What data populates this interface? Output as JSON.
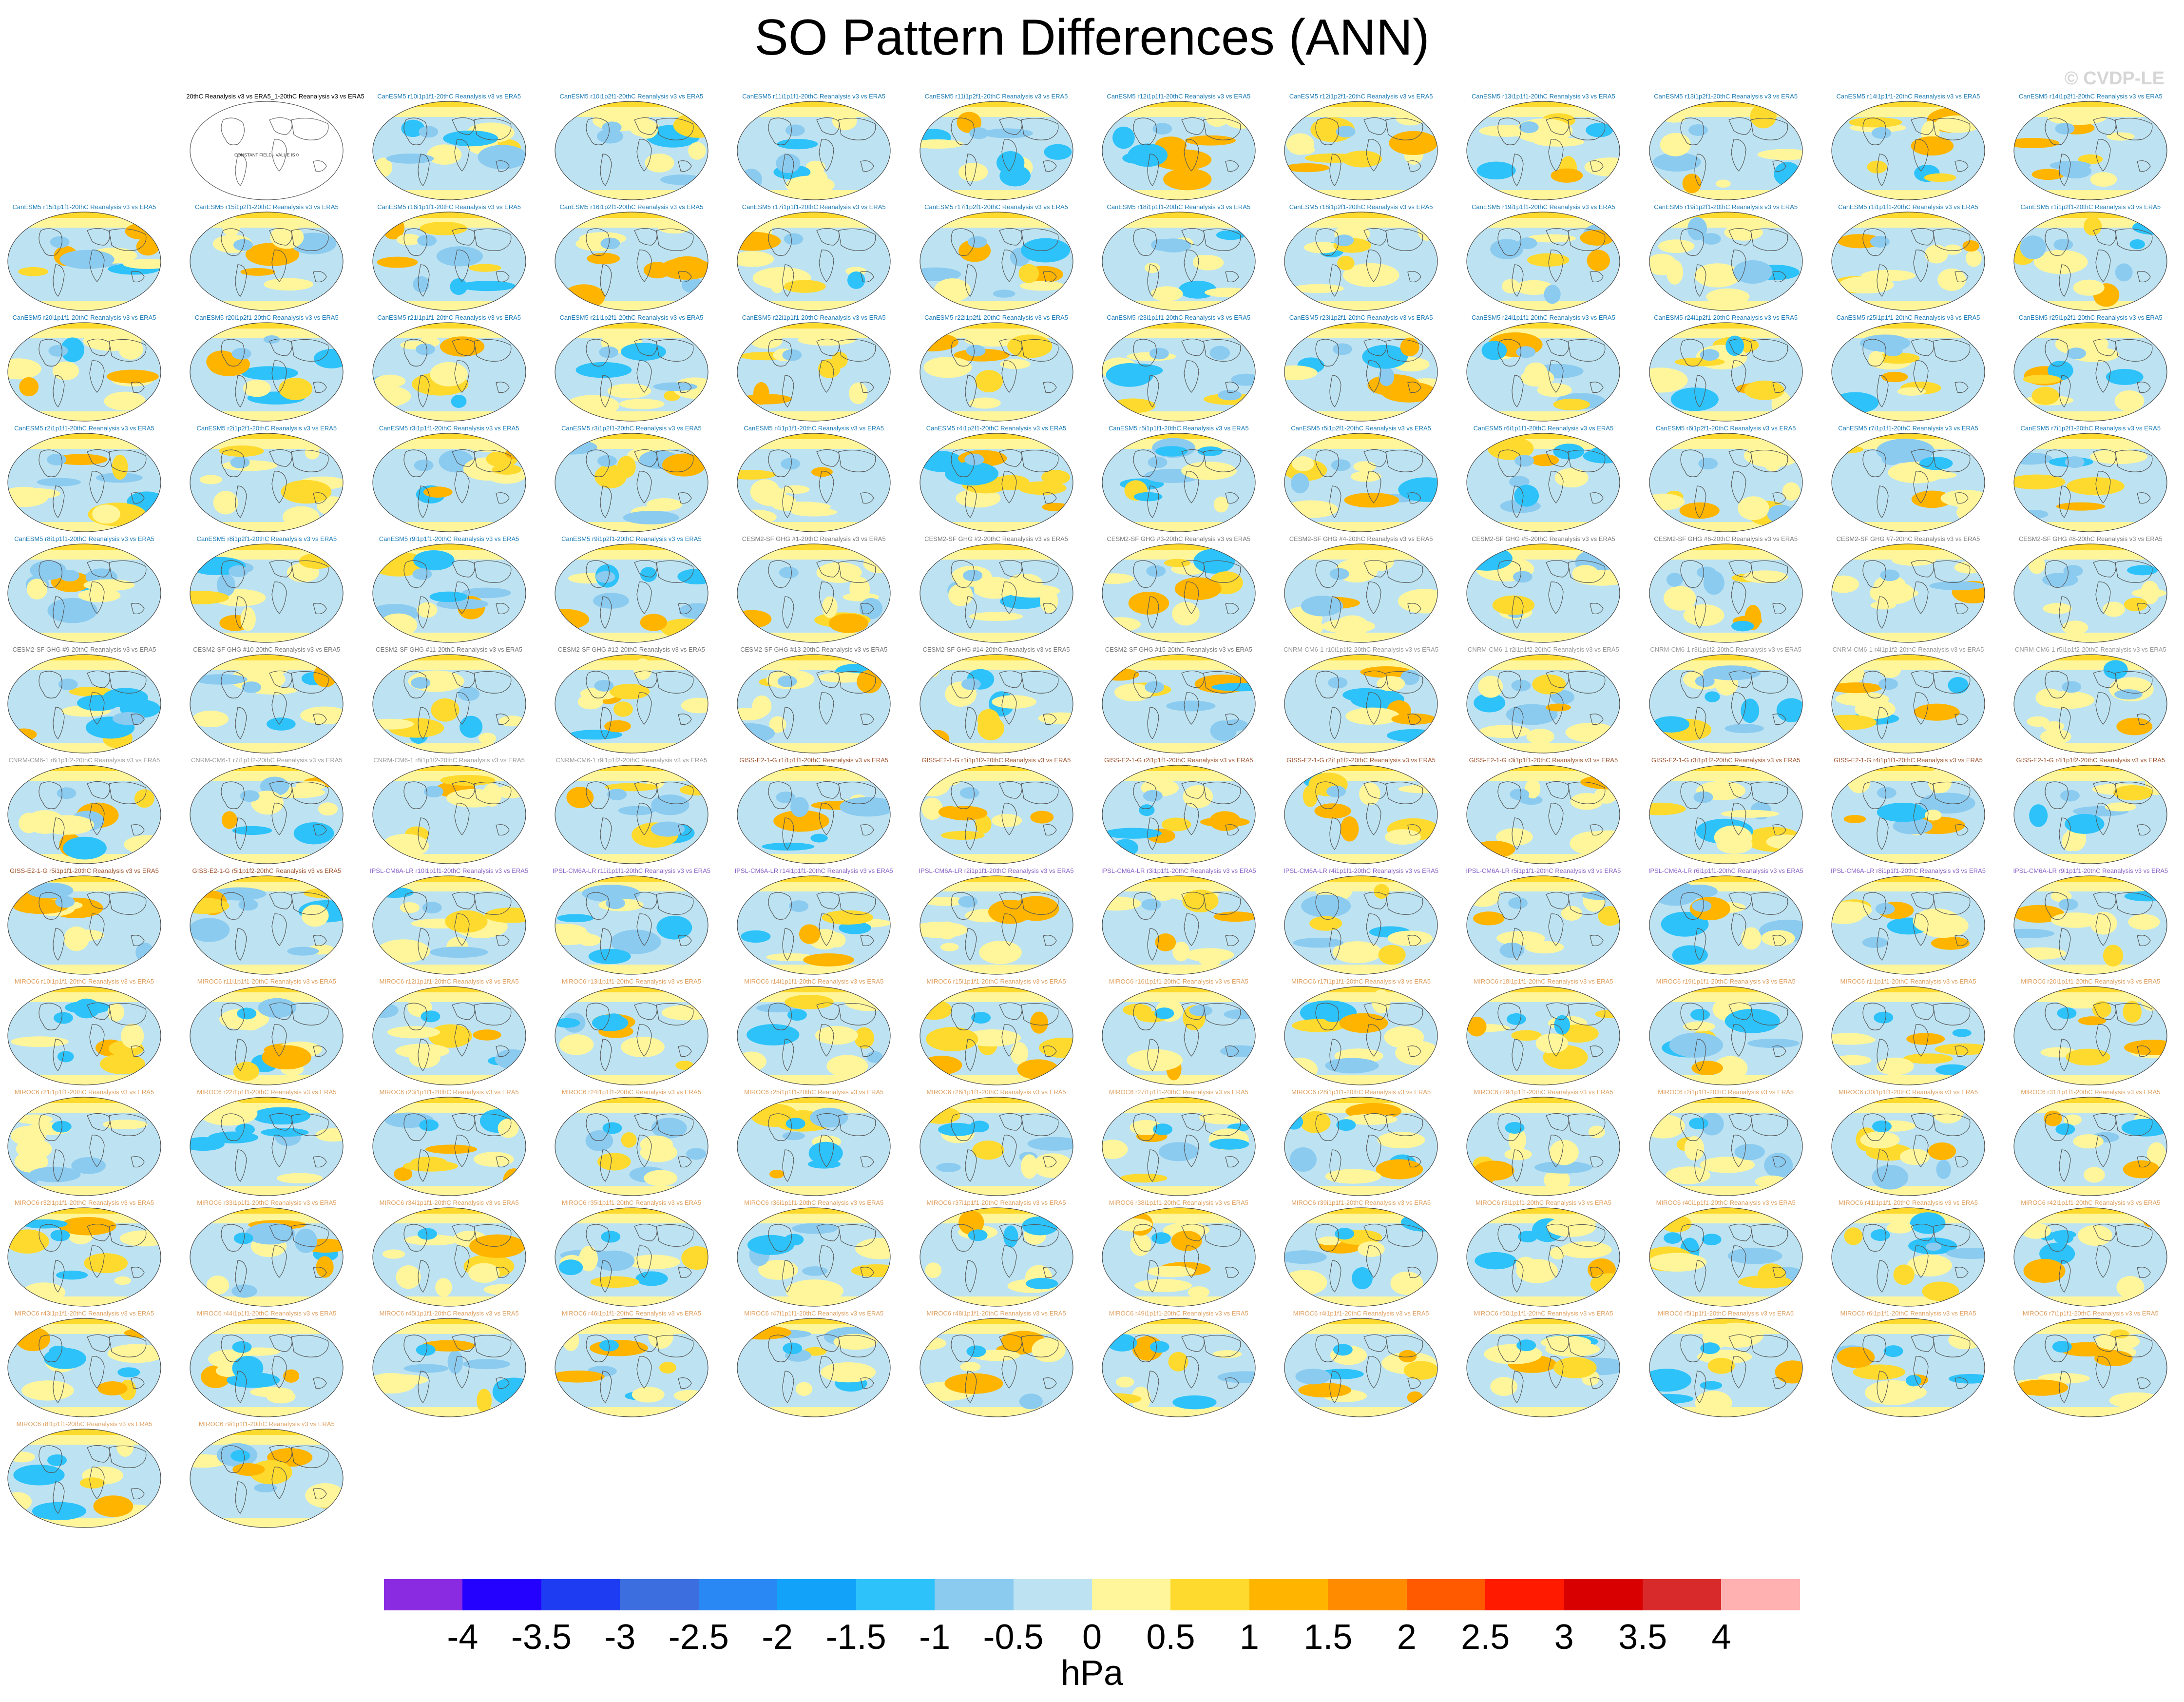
{
  "title": "SO Pattern Differences (ANN)",
  "copyright": "© CVDP-LE",
  "colorbar": {
    "units": "hPa",
    "tick_labels": [
      "-4",
      "-3.5",
      "-3",
      "-2.5",
      "-2",
      "-1.5",
      "-1",
      "-0.5",
      "0",
      "0.5",
      "1",
      "1.5",
      "2",
      "2.5",
      "3",
      "3.5",
      "4"
    ],
    "colors": [
      "#8a2be2",
      "#2400ff",
      "#1e3df2",
      "#3c6ee0",
      "#2a88f5",
      "#12a2fa",
      "#2ec2fa",
      "#8ccbf0",
      "#bde3f2",
      "#fff69c",
      "#ffda2e",
      "#ffb400",
      "#ff8c00",
      "#ff5a00",
      "#ff1a00",
      "#d80000",
      "#d82a2a",
      "#ffb0b0"
    ]
  },
  "chart_data": {
    "type": "heatmap",
    "projection": "global map panels (Robinson-like)",
    "value_range": [
      -4,
      4
    ],
    "units": "hPa",
    "panels": [
      {
        "title": "20thC Reanalysis v3 vs ERA5_1-20thC Reanalysis v3 vs ERA5",
        "group": "ref",
        "label": "CONSTANT FIELD - VALUE IS 0"
      },
      {
        "title": "CanESM5 r10i1p1f1-20thC Reanalysis v3 vs ERA5",
        "group": "canesm"
      },
      {
        "title": "CanESM5 r10i1p2f1-20thC Reanalysis v3 vs ERA5",
        "group": "canesm"
      },
      {
        "title": "CanESM5 r11i1p1f1-20thC Reanalysis v3 vs ERA5",
        "group": "canesm"
      },
      {
        "title": "CanESM5 r11i1p2f1-20thC Reanalysis v3 vs ERA5",
        "group": "canesm"
      },
      {
        "title": "CanESM5 r12i1p1f1-20thC Reanalysis v3 vs ERA5",
        "group": "canesm"
      },
      {
        "title": "CanESM5 r12i1p2f1-20thC Reanalysis v3 vs ERA5",
        "group": "canesm"
      },
      {
        "title": "CanESM5 r13i1p1f1-20thC Reanalysis v3 vs ERA5",
        "group": "canesm"
      },
      {
        "title": "CanESM5 r13i1p2f1-20thC Reanalysis v3 vs ERA5",
        "group": "canesm"
      },
      {
        "title": "CanESM5 r14i1p1f1-20thC Reanalysis v3 vs ERA5",
        "group": "canesm"
      },
      {
        "title": "CanESM5 r14i1p2f1-20thC Reanalysis v3 vs ERA5",
        "group": "canesm"
      },
      {
        "title": "CanESM5 r15i1p1f1-20thC Reanalysis v3 vs ERA5",
        "group": "canesm"
      },
      {
        "title": "CanESM5 r15i1p2f1-20thC Reanalysis v3 vs ERA5",
        "group": "canesm"
      },
      {
        "title": "CanESM5 r16i1p1f1-20thC Reanalysis v3 vs ERA5",
        "group": "canesm"
      },
      {
        "title": "CanESM5 r16i1p2f1-20thC Reanalysis v3 vs ERA5",
        "group": "canesm"
      },
      {
        "title": "CanESM5 r17i1p1f1-20thC Reanalysis v3 vs ERA5",
        "group": "canesm"
      },
      {
        "title": "CanESM5 r17i1p2f1-20thC Reanalysis v3 vs ERA5",
        "group": "canesm"
      },
      {
        "title": "CanESM5 r18i1p1f1-20thC Reanalysis v3 vs ERA5",
        "group": "canesm"
      },
      {
        "title": "CanESM5 r18i1p2f1-20thC Reanalysis v3 vs ERA5",
        "group": "canesm"
      },
      {
        "title": "CanESM5 r19i1p1f1-20thC Reanalysis v3 vs ERA5",
        "group": "canesm"
      },
      {
        "title": "CanESM5 r19i1p2f1-20thC Reanalysis v3 vs ERA5",
        "group": "canesm"
      },
      {
        "title": "CanESM5 r1i1p1f1-20thC Reanalysis v3 vs ERA5",
        "group": "canesm"
      },
      {
        "title": "CanESM5 r1i1p2f1-20thC Reanalysis v3 vs ERA5",
        "group": "canesm"
      },
      {
        "title": "CanESM5 r20i1p1f1-20thC Reanalysis v3 vs ERA5",
        "group": "canesm"
      },
      {
        "title": "CanESM5 r20i1p2f1-20thC Reanalysis v3 vs ERA5",
        "group": "canesm"
      },
      {
        "title": "CanESM5 r21i1p1f1-20thC Reanalysis v3 vs ERA5",
        "group": "canesm"
      },
      {
        "title": "CanESM5 r21i1p2f1-20thC Reanalysis v3 vs ERA5",
        "group": "canesm"
      },
      {
        "title": "CanESM5 r22i1p1f1-20thC Reanalysis v3 vs ERA5",
        "group": "canesm"
      },
      {
        "title": "CanESM5 r22i1p2f1-20thC Reanalysis v3 vs ERA5",
        "group": "canesm"
      },
      {
        "title": "CanESM5 r23i1p1f1-20thC Reanalysis v3 vs ERA5",
        "group": "canesm"
      },
      {
        "title": "CanESM5 r23i1p2f1-20thC Reanalysis v3 vs ERA5",
        "group": "canesm"
      },
      {
        "title": "CanESM5 r24i1p1f1-20thC Reanalysis v3 vs ERA5",
        "group": "canesm"
      },
      {
        "title": "CanESM5 r24i1p2f1-20thC Reanalysis v3 vs ERA5",
        "group": "canesm"
      },
      {
        "title": "CanESM5 r25i1p1f1-20thC Reanalysis v3 vs ERA5",
        "group": "canesm"
      },
      {
        "title": "CanESM5 r25i1p2f1-20thC Reanalysis v3 vs ERA5",
        "group": "canesm"
      },
      {
        "title": "CanESM5 r2i1p1f1-20thC Reanalysis v3 vs ERA5",
        "group": "canesm"
      },
      {
        "title": "CanESM5 r2i1p2f1-20thC Reanalysis v3 vs ERA5",
        "group": "canesm"
      },
      {
        "title": "CanESM5 r3i1p1f1-20thC Reanalysis v3 vs ERA5",
        "group": "canesm"
      },
      {
        "title": "CanESM5 r3i1p2f1-20thC Reanalysis v3 vs ERA5",
        "group": "canesm"
      },
      {
        "title": "CanESM5 r4i1p1f1-20thC Reanalysis v3 vs ERA5",
        "group": "canesm"
      },
      {
        "title": "CanESM5 r4i1p2f1-20thC Reanalysis v3 vs ERA5",
        "group": "canesm"
      },
      {
        "title": "CanESM5 r5i1p1f1-20thC Reanalysis v3 vs ERA5",
        "group": "canesm"
      },
      {
        "title": "CanESM5 r5i1p2f1-20thC Reanalysis v3 vs ERA5",
        "group": "canesm"
      },
      {
        "title": "CanESM5 r6i1p1f1-20thC Reanalysis v3 vs ERA5",
        "group": "canesm"
      },
      {
        "title": "CanESM5 r6i1p2f1-20thC Reanalysis v3 vs ERA5",
        "group": "canesm"
      },
      {
        "title": "CanESM5 r7i1p1f1-20thC Reanalysis v3 vs ERA5",
        "group": "canesm"
      },
      {
        "title": "CanESM5 r7i1p2f1-20thC Reanalysis v3 vs ERA5",
        "group": "canesm"
      },
      {
        "title": "CanESM5 r8i1p1f1-20thC Reanalysis v3 vs ERA5",
        "group": "canesm"
      },
      {
        "title": "CanESM5 r8i1p2f1-20thC Reanalysis v3 vs ERA5",
        "group": "canesm"
      },
      {
        "title": "CanESM5 r9i1p1f1-20thC Reanalysis v3 vs ERA5",
        "group": "canesm"
      },
      {
        "title": "CanESM5 r9i1p2f1-20thC Reanalysis v3 vs ERA5",
        "group": "canesm"
      },
      {
        "title": "CESM2-SF GHG #1-20thC Reanalysis v3 vs ERA5",
        "group": "cesm"
      },
      {
        "title": "CESM2-SF GHG #2-20thC Reanalysis v3 vs ERA5",
        "group": "cesm"
      },
      {
        "title": "CESM2-SF GHG #3-20thC Reanalysis v3 vs ERA5",
        "group": "cesm"
      },
      {
        "title": "CESM2-SF GHG #4-20thC Reanalysis v3 vs ERA5",
        "group": "cesm"
      },
      {
        "title": "CESM2-SF GHG #5-20thC Reanalysis v3 vs ERA5",
        "group": "cesm"
      },
      {
        "title": "CESM2-SF GHG #6-20thC Reanalysis v3 vs ERA5",
        "group": "cesm"
      },
      {
        "title": "CESM2-SF GHG #7-20thC Reanalysis v3 vs ERA5",
        "group": "cesm"
      },
      {
        "title": "CESM2-SF GHG #8-20thC Reanalysis v3 vs ERA5",
        "group": "cesm"
      },
      {
        "title": "CESM2-SF GHG #9-20thC Reanalysis v3 vs ERA5",
        "group": "cesm"
      },
      {
        "title": "CESM2-SF GHG #10-20thC Reanalysis v3 vs ERA5",
        "group": "cesm"
      },
      {
        "title": "CESM2-SF GHG #11-20thC Reanalysis v3 vs ERA5",
        "group": "cesm"
      },
      {
        "title": "CESM2-SF GHG #12-20thC Reanalysis v3 vs ERA5",
        "group": "cesm"
      },
      {
        "title": "CESM2-SF GHG #13-20thC Reanalysis v3 vs ERA5",
        "group": "cesm"
      },
      {
        "title": "CESM2-SF GHG #14-20thC Reanalysis v3 vs ERA5",
        "group": "cesm"
      },
      {
        "title": "CESM2-SF GHG #15-20thC Reanalysis v3 vs ERA5",
        "group": "cesm"
      },
      {
        "title": "CNRM-CM6-1 r10i1p1f2-20thC Reanalysis v3 vs ERA5",
        "group": "cnrm"
      },
      {
        "title": "CNRM-CM6-1 r2i1p1f2-20thC Reanalysis v3 vs ERA5",
        "group": "cnrm"
      },
      {
        "title": "CNRM-CM6-1 r3i1p1f2-20thC Reanalysis v3 vs ERA5",
        "group": "cnrm"
      },
      {
        "title": "CNRM-CM6-1 r4i1p1f2-20thC Reanalysis v3 vs ERA5",
        "group": "cnrm"
      },
      {
        "title": "CNRM-CM6-1 r5i1p1f2-20thC Reanalysis v3 vs ERA5",
        "group": "cnrm"
      },
      {
        "title": "CNRM-CM6-1 r6i1p1f2-20thC Reanalysis v3 vs ERA5",
        "group": "cnrm"
      },
      {
        "title": "CNRM-CM6-1 r7i1p1f2-20thC Reanalysis v3 vs ERA5",
        "group": "cnrm"
      },
      {
        "title": "CNRM-CM6-1 r8i1p1f2-20thC Reanalysis v3 vs ERA5",
        "group": "cnrm"
      },
      {
        "title": "CNRM-CM6-1 r9i1p1f2-20thC Reanalysis v3 vs ERA5",
        "group": "cnrm"
      },
      {
        "title": "GISS-E2-1-G r1i1p1f1-20thC Reanalysis v3 vs ERA5",
        "group": "giss"
      },
      {
        "title": "GISS-E2-1-G r1i1p1f2-20thC Reanalysis v3 vs ERA5",
        "group": "giss"
      },
      {
        "title": "GISS-E2-1-G r2i1p1f1-20thC Reanalysis v3 vs ERA5",
        "group": "giss"
      },
      {
        "title": "GISS-E2-1-G r2i1p1f2-20thC Reanalysis v3 vs ERA5",
        "group": "giss"
      },
      {
        "title": "GISS-E2-1-G r3i1p1f1-20thC Reanalysis v3 vs ERA5",
        "group": "giss"
      },
      {
        "title": "GISS-E2-1-G r3i1p1f2-20thC Reanalysis v3 vs ERA5",
        "group": "giss"
      },
      {
        "title": "GISS-E2-1-G r4i1p1f1-20thC Reanalysis v3 vs ERA5",
        "group": "giss"
      },
      {
        "title": "GISS-E2-1-G r4i1p1f2-20thC Reanalysis v3 vs ERA5",
        "group": "giss"
      },
      {
        "title": "GISS-E2-1-G r5i1p1f1-20thC Reanalysis v3 vs ERA5",
        "group": "giss"
      },
      {
        "title": "GISS-E2-1-G r5i1p1f2-20thC Reanalysis v3 vs ERA5",
        "group": "giss"
      },
      {
        "title": "IPSL-CM6A-LR r10i1p1f1-20thC Reanalysis v3 vs ERA5",
        "group": "ipsl"
      },
      {
        "title": "IPSL-CM6A-LR r11i1p1f1-20thC Reanalysis v3 vs ERA5",
        "group": "ipsl"
      },
      {
        "title": "IPSL-CM6A-LR r14i1p1f1-20thC Reanalysis v3 vs ERA5",
        "group": "ipsl"
      },
      {
        "title": "IPSL-CM6A-LR r2i1p1f1-20thC Reanalysis v3 vs ERA5",
        "group": "ipsl"
      },
      {
        "title": "IPSL-CM6A-LR r3i1p1f1-20thC Reanalysis v3 vs ERA5",
        "group": "ipsl"
      },
      {
        "title": "IPSL-CM6A-LR r4i1p1f1-20thC Reanalysis v3 vs ERA5",
        "group": "ipsl"
      },
      {
        "title": "IPSL-CM6A-LR r5i1p1f1-20thC Reanalysis v3 vs ERA5",
        "group": "ipsl"
      },
      {
        "title": "IPSL-CM6A-LR r6i1p1f1-20thC Reanalysis v3 vs ERA5",
        "group": "ipsl"
      },
      {
        "title": "IPSL-CM6A-LR r8i1p1f1-20thC Reanalysis v3 vs ERA5",
        "group": "ipsl"
      },
      {
        "title": "IPSL-CM6A-LR r9i1p1f1-20thC Reanalysis v3 vs ERA5",
        "group": "ipsl"
      },
      {
        "title": "MIROC6 r10i1p1f1-20thC Reanalysis v3 vs ERA5",
        "group": "miroc"
      },
      {
        "title": "MIROC6 r11i1p1f1-20thC Reanalysis v3 vs ERA5",
        "group": "miroc"
      },
      {
        "title": "MIROC6 r12i1p1f1-20thC Reanalysis v3 vs ERA5",
        "group": "miroc"
      },
      {
        "title": "MIROC6 r13i1p1f1-20thC Reanalysis v3 vs ERA5",
        "group": "miroc"
      },
      {
        "title": "MIROC6 r14i1p1f1-20thC Reanalysis v3 vs ERA5",
        "group": "miroc"
      },
      {
        "title": "MIROC6 r15i1p1f1-20thC Reanalysis v3 vs ERA5",
        "group": "miroc"
      },
      {
        "title": "MIROC6 r16i1p1f1-20thC Reanalysis v3 vs ERA5",
        "group": "miroc"
      },
      {
        "title": "MIROC6 r17i1p1f1-20thC Reanalysis v3 vs ERA5",
        "group": "miroc"
      },
      {
        "title": "MIROC6 r18i1p1f1-20thC Reanalysis v3 vs ERA5",
        "group": "miroc"
      },
      {
        "title": "MIROC6 r19i1p1f1-20thC Reanalysis v3 vs ERA5",
        "group": "miroc"
      },
      {
        "title": "MIROC6 r1i1p1f1-20thC Reanalysis v3 vs ERA5",
        "group": "miroc"
      },
      {
        "title": "MIROC6 r20i1p1f1-20thC Reanalysis v3 vs ERA5",
        "group": "miroc"
      },
      {
        "title": "MIROC6 r21i1p1f1-20thC Reanalysis v3 vs ERA5",
        "group": "miroc"
      },
      {
        "title": "MIROC6 r22i1p1f1-20thC Reanalysis v3 vs ERA5",
        "group": "miroc"
      },
      {
        "title": "MIROC6 r23i1p1f1-20thC Reanalysis v3 vs ERA5",
        "group": "miroc"
      },
      {
        "title": "MIROC6 r24i1p1f1-20thC Reanalysis v3 vs ERA5",
        "group": "miroc"
      },
      {
        "title": "MIROC6 r25i1p1f1-20thC Reanalysis v3 vs ERA5",
        "group": "miroc"
      },
      {
        "title": "MIROC6 r26i1p1f1-20thC Reanalysis v3 vs ERA5",
        "group": "miroc"
      },
      {
        "title": "MIROC6 r27i1p1f1-20thC Reanalysis v3 vs ERA5",
        "group": "miroc"
      },
      {
        "title": "MIROC6 r28i1p1f1-20thC Reanalysis v3 vs ERA5",
        "group": "miroc"
      },
      {
        "title": "MIROC6 r29i1p1f1-20thC Reanalysis v3 vs ERA5",
        "group": "miroc"
      },
      {
        "title": "MIROC6 r2i1p1f1-20thC Reanalysis v3 vs ERA5",
        "group": "miroc"
      },
      {
        "title": "MIROC6 r30i1p1f1-20thC Reanalysis v3 vs ERA5",
        "group": "miroc"
      },
      {
        "title": "MIROC6 r31i1p1f1-20thC Reanalysis v3 vs ERA5",
        "group": "miroc"
      },
      {
        "title": "MIROC6 r32i1p1f1-20thC Reanalysis v3 vs ERA5",
        "group": "miroc"
      },
      {
        "title": "MIROC6 r33i1p1f1-20thC Reanalysis v3 vs ERA5",
        "group": "miroc"
      },
      {
        "title": "MIROC6 r34i1p1f1-20thC Reanalysis v3 vs ERA5",
        "group": "miroc"
      },
      {
        "title": "MIROC6 r35i1p1f1-20thC Reanalysis v3 vs ERA5",
        "group": "miroc"
      },
      {
        "title": "MIROC6 r36i1p1f1-20thC Reanalysis v3 vs ERA5",
        "group": "miroc"
      },
      {
        "title": "MIROC6 r37i1p1f1-20thC Reanalysis v3 vs ERA5",
        "group": "miroc"
      },
      {
        "title": "MIROC6 r38i1p1f1-20thC Reanalysis v3 vs ERA5",
        "group": "miroc"
      },
      {
        "title": "MIROC6 r39i1p1f1-20thC Reanalysis v3 vs ERA5",
        "group": "miroc"
      },
      {
        "title": "MIROC6 r3i1p1f1-20thC Reanalysis v3 vs ERA5",
        "group": "miroc"
      },
      {
        "title": "MIROC6 r40i1p1f1-20thC Reanalysis v3 vs ERA5",
        "group": "miroc"
      },
      {
        "title": "MIROC6 r41i1p1f1-20thC Reanalysis v3 vs ERA5",
        "group": "miroc"
      },
      {
        "title": "MIROC6 r42i1p1f1-20thC Reanalysis v3 vs ERA5",
        "group": "miroc"
      },
      {
        "title": "MIROC6 r43i1p1f1-20thC Reanalysis v3 vs ERA5",
        "group": "miroc"
      },
      {
        "title": "MIROC6 r44i1p1f1-20thC Reanalysis v3 vs ERA5",
        "group": "miroc"
      },
      {
        "title": "MIROC6 r45i1p1f1-20thC Reanalysis v3 vs ERA5",
        "group": "miroc"
      },
      {
        "title": "MIROC6 r46i1p1f1-20thC Reanalysis v3 vs ERA5",
        "group": "miroc"
      },
      {
        "title": "MIROC6 r47i1p1f1-20thC Reanalysis v3 vs ERA5",
        "group": "miroc"
      },
      {
        "title": "MIROC6 r48i1p1f1-20thC Reanalysis v3 vs ERA5",
        "group": "miroc"
      },
      {
        "title": "MIROC6 r49i1p1f1-20thC Reanalysis v3 vs ERA5",
        "group": "miroc"
      },
      {
        "title": "MIROC6 r4i1p1f1-20thC Reanalysis v3 vs ERA5",
        "group": "miroc"
      },
      {
        "title": "MIROC6 r50i1p1f1-20thC Reanalysis v3 vs ERA5",
        "group": "miroc"
      },
      {
        "title": "MIROC6 r5i1p1f1-20thC Reanalysis v3 vs ERA5",
        "group": "miroc"
      },
      {
        "title": "MIROC6 r6i1p1f1-20thC Reanalysis v3 vs ERA5",
        "group": "miroc"
      },
      {
        "title": "MIROC6 r7i1p1f1-20thC Reanalysis v3 vs ERA5",
        "group": "miroc"
      },
      {
        "title": "MIROC6 r8i1p1f1-20thC Reanalysis v3 vs ERA5",
        "group": "miroc"
      },
      {
        "title": "MIROC6 r9i1p1f1-20thC Reanalysis v3 vs ERA5",
        "group": "miroc"
      }
    ]
  },
  "group_colors": {
    "ref": "#000000",
    "canesm": "#1a7ab5",
    "cesm": "#7a7a7a",
    "cnrm": "#9a9a9a",
    "giss": "#a0522d",
    "ipsl": "#8a63c9",
    "miroc": "#e0a060"
  }
}
